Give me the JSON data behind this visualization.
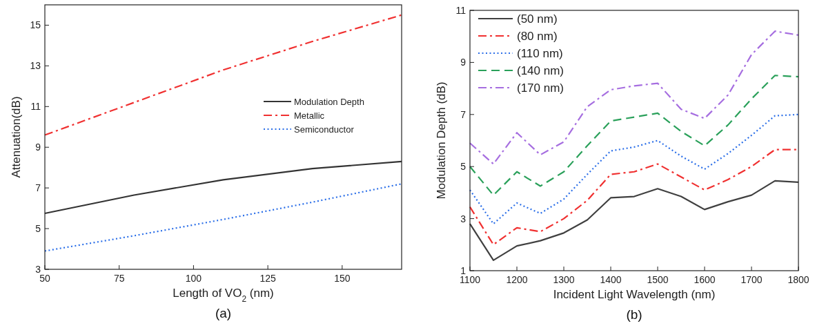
{
  "chart_data": [
    {
      "type": "line",
      "xlabel": "Length of VO$_{2}$ (nm)",
      "ylabel": "Attenuation(dB)",
      "annotations": [
        "(a)"
      ],
      "xlim": [
        50,
        170
      ],
      "ylim": [
        3,
        16
      ],
      "xticks": [
        50,
        75,
        100,
        125,
        150
      ],
      "yticks": [
        3,
        5,
        7,
        9,
        11,
        13,
        15
      ],
      "grid": false,
      "legend": "right",
      "x": [
        50,
        80,
        110,
        140,
        170
      ],
      "series": [
        {
          "name": "Modulation Depth",
          "color": "#333333",
          "line_style": "solid",
          "values": [
            5.75,
            6.65,
            7.4,
            7.95,
            8.3
          ]
        },
        {
          "name": "Metallic",
          "color": "#f03030",
          "line_style": "dashdot",
          "values": [
            9.6,
            11.2,
            12.8,
            14.2,
            15.5
          ]
        },
        {
          "name": "Semiconductor",
          "color": "#2a6ee8",
          "line_style": "dotted",
          "values": [
            3.9,
            4.65,
            5.45,
            6.3,
            7.2
          ]
        }
      ]
    },
    {
      "type": "line",
      "xlabel": "Incident Light Wavelength (nm)",
      "ylabel": "Modulation Depth (dB)",
      "annotations": [
        "(b)"
      ],
      "xlim": [
        1100,
        1800
      ],
      "ylim": [
        1,
        11
      ],
      "xticks": [
        1100,
        1200,
        1300,
        1400,
        1500,
        1600,
        1700,
        1800
      ],
      "yticks": [
        1,
        3,
        5,
        7,
        9,
        11
      ],
      "grid": false,
      "legend": "top left",
      "x": [
        1100,
        1150,
        1200,
        1250,
        1300,
        1350,
        1400,
        1450,
        1500,
        1550,
        1600,
        1650,
        1700,
        1750,
        1800
      ],
      "series": [
        {
          "name": "(50 nm)",
          "color": "#404040",
          "line_style": "solid",
          "values": [
            2.8,
            1.4,
            1.95,
            2.15,
            2.45,
            2.95,
            3.8,
            3.85,
            4.15,
            3.85,
            3.35,
            3.65,
            3.9,
            4.45,
            4.4
          ]
        },
        {
          "name": "(80 nm)",
          "color": "#f03030",
          "line_style": "dashdot",
          "values": [
            3.45,
            2.0,
            2.65,
            2.5,
            3.0,
            3.7,
            4.7,
            4.8,
            5.1,
            4.6,
            4.1,
            4.5,
            5.0,
            5.65,
            5.65
          ]
        },
        {
          "name": "(110 nm)",
          "color": "#2a6ee8",
          "line_style": "dotted",
          "values": [
            4.1,
            2.8,
            3.6,
            3.2,
            3.75,
            4.7,
            5.6,
            5.75,
            6.0,
            5.4,
            4.9,
            5.5,
            6.2,
            6.95,
            7.0
          ]
        },
        {
          "name": "(140 nm)",
          "color": "#2aa05a",
          "line_style": "dashed",
          "values": [
            5.0,
            3.9,
            4.8,
            4.25,
            4.8,
            5.8,
            6.75,
            6.9,
            7.05,
            6.35,
            5.8,
            6.6,
            7.6,
            8.5,
            8.45
          ]
        },
        {
          "name": "(170 nm)",
          "color": "#a66ee0",
          "line_style": "dashdot",
          "values": [
            5.9,
            5.1,
            6.3,
            5.45,
            5.95,
            7.3,
            7.95,
            8.1,
            8.2,
            7.2,
            6.85,
            7.75,
            9.3,
            10.2,
            10.05
          ]
        }
      ]
    }
  ]
}
